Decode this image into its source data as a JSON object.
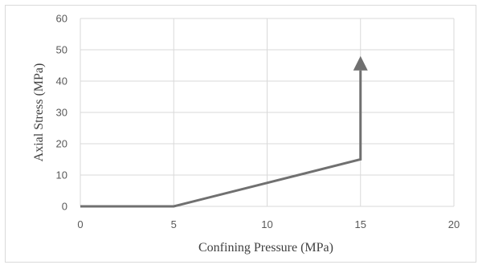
{
  "chart_data": {
    "type": "line",
    "title": "",
    "xlabel": "Confining Pressure (MPa)",
    "ylabel": "Axial Stress (MPa)",
    "xlim": [
      0,
      20
    ],
    "ylim": [
      0,
      60
    ],
    "x_ticks": [
      "0",
      "5",
      "10",
      "15",
      "20"
    ],
    "y_ticks": [
      "0",
      "10",
      "20",
      "30",
      "40",
      "50",
      "60"
    ],
    "grid": true,
    "legend": "none",
    "series": [
      {
        "x": [
          0,
          5,
          15,
          15
        ],
        "y": [
          0,
          0,
          15,
          48
        ],
        "color": "#707070",
        "end_marker": "arrow"
      }
    ]
  }
}
